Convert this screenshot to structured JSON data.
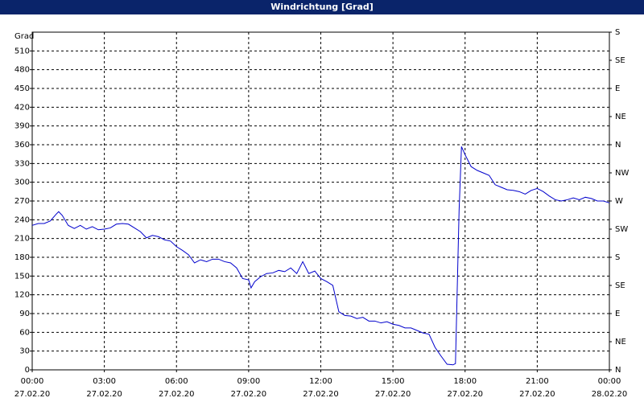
{
  "chart_data": {
    "type": "line",
    "title": "Windrichtung [Grad]",
    "y_label": "Grad",
    "xlim": [
      0,
      24
    ],
    "xticks": [
      {
        "value": 0,
        "label": "00:00"
      },
      {
        "value": 3,
        "label": "03:00"
      },
      {
        "value": 6,
        "label": "06:00"
      },
      {
        "value": 9,
        "label": "09:00"
      },
      {
        "value": 12,
        "label": "12:00"
      },
      {
        "value": 15,
        "label": "15:00"
      },
      {
        "value": 18,
        "label": "18:00"
      },
      {
        "value": 21,
        "label": "21:00"
      },
      {
        "value": 24,
        "label": "00:00"
      }
    ],
    "xtick_dates": [
      "27.02.20",
      "27.02.20",
      "27.02.20",
      "27.02.20",
      "27.02.20",
      "27.02.20",
      "27.02.20",
      "27.02.20",
      "28.02.20"
    ],
    "ylim": [
      0,
      540
    ],
    "yticks": [
      0,
      30,
      60,
      90,
      120,
      150,
      180,
      210,
      240,
      270,
      300,
      330,
      360,
      390,
      420,
      450,
      480,
      510
    ],
    "y2lim": [
      0,
      540
    ],
    "y2ticks": [
      {
        "value": 0,
        "label": "N"
      },
      {
        "value": 45,
        "label": "NE"
      },
      {
        "value": 90,
        "label": "E"
      },
      {
        "value": 135,
        "label": "SE"
      },
      {
        "value": 180,
        "label": "S"
      },
      {
        "value": 225,
        "label": "SW"
      },
      {
        "value": 270,
        "label": "W"
      },
      {
        "value": 315,
        "label": "NW"
      },
      {
        "value": 360,
        "label": "N"
      },
      {
        "value": 405,
        "label": "NE"
      },
      {
        "value": 450,
        "label": "E"
      },
      {
        "value": 495,
        "label": "SE"
      },
      {
        "value": 540,
        "label": "S"
      }
    ],
    "grid": true,
    "series": [
      {
        "color": "#0000cc",
        "x": [
          0,
          0.25,
          0.5,
          0.75,
          1.0,
          1.1,
          1.25,
          1.5,
          1.75,
          2.0,
          2.25,
          2.5,
          2.75,
          3.0,
          3.25,
          3.5,
          3.75,
          4.0,
          4.25,
          4.5,
          4.75,
          5.0,
          5.25,
          5.5,
          5.75,
          6.0,
          6.25,
          6.5,
          6.75,
          7.0,
          7.25,
          7.5,
          7.75,
          8.0,
          8.25,
          8.5,
          8.75,
          9.0,
          9.1,
          9.25,
          9.5,
          9.75,
          10.0,
          10.25,
          10.5,
          10.75,
          11.0,
          11.25,
          11.5,
          11.75,
          12.0,
          12.25,
          12.5,
          12.75,
          13.0,
          13.25,
          13.5,
          13.75,
          14.0,
          14.25,
          14.5,
          14.75,
          15.0,
          15.25,
          15.5,
          15.75,
          16.0,
          16.25,
          16.5,
          16.75,
          17.0,
          17.25,
          17.5,
          17.6,
          17.75,
          17.85,
          18.0,
          18.25,
          18.5,
          18.75,
          19.0,
          19.25,
          19.5,
          19.75,
          20.0,
          20.25,
          20.5,
          20.75,
          21.0,
          21.25,
          21.5,
          21.75,
          22.0,
          22.25,
          22.5,
          22.75,
          23.0,
          23.25,
          23.5,
          23.75,
          24.0
        ],
        "values": [
          231,
          234,
          234,
          238,
          249,
          253,
          247,
          231,
          226,
          231,
          225,
          229,
          224,
          225,
          227,
          233,
          234,
          233,
          227,
          221,
          211,
          215,
          213,
          208,
          206,
          197,
          191,
          184,
          171,
          176,
          173,
          177,
          177,
          173,
          171,
          163,
          146,
          144,
          131,
          141,
          149,
          154,
          155,
          159,
          157,
          163,
          154,
          173,
          154,
          158,
          146,
          141,
          135,
          93,
          87,
          86,
          82,
          84,
          78,
          78,
          75,
          77,
          73,
          71,
          67,
          67,
          63,
          59,
          57,
          36,
          22,
          9,
          8,
          10,
          254,
          357,
          344,
          325,
          319,
          315,
          311,
          296,
          292,
          288,
          287,
          285,
          281,
          287,
          290,
          285,
          278,
          272,
          270,
          272,
          275,
          272,
          276,
          274,
          270,
          270,
          267
        ]
      }
    ]
  }
}
